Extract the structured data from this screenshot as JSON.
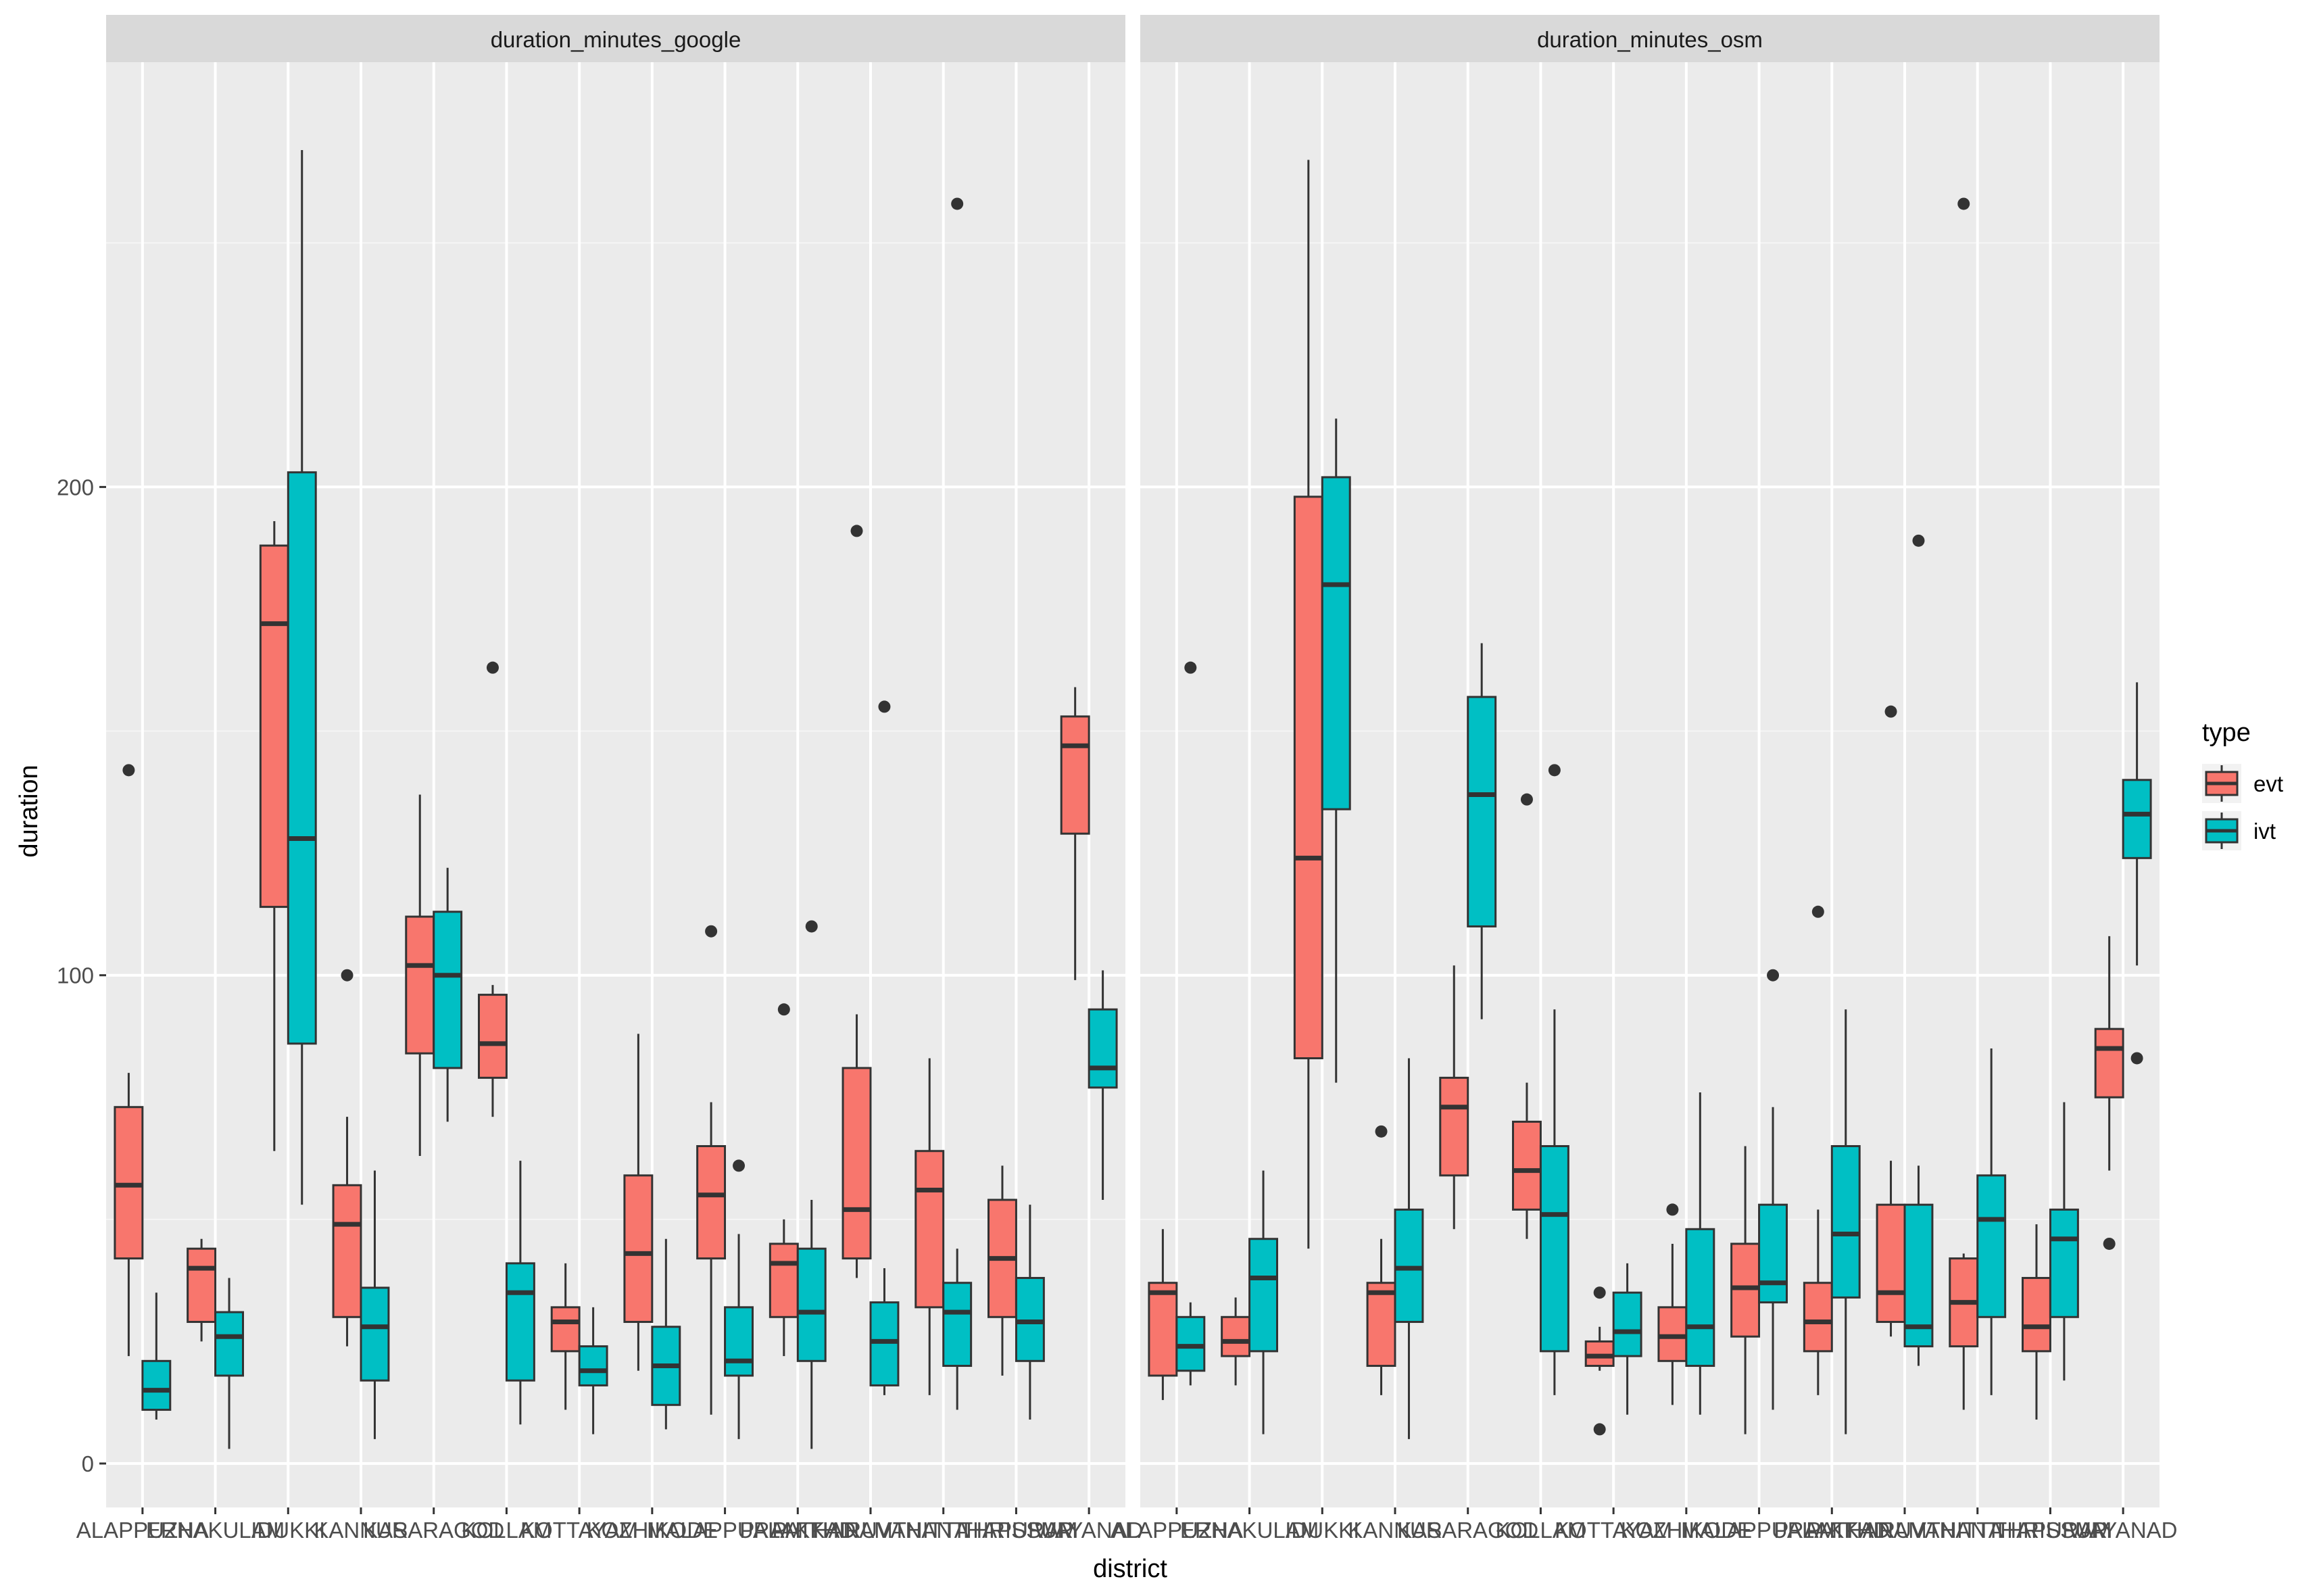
{
  "colors": {
    "panel_bg": "#EBEBEB",
    "grid_major": "#FFFFFF",
    "strip_bg": "#D9D9D9",
    "text_dark": "#1A1A1A",
    "text_axis": "#4D4D4D",
    "box_line": "#333333",
    "evt_fill": "#F8766D",
    "ivt_fill": "#00BFC4"
  },
  "chart_data": {
    "type": "boxplot",
    "xlabel": "district",
    "ylabel": "duration",
    "ylim": [
      -9,
      287
    ],
    "yticks": [
      0,
      100,
      200
    ],
    "grid": true,
    "facets": [
      "duration_minutes_google",
      "duration_minutes_osm"
    ],
    "categories": [
      "ALAPPUZHA",
      "ERNAKULAM",
      "IDUKKI",
      "KANNUR",
      "KASARAGOD",
      "KOLLAM",
      "KOTTAYAM",
      "KOZHIKODE",
      "MALAPPURAM",
      "PALAKKAD",
      "PATHANAMTHITTA",
      "THIRUVANANTHAPURAM",
      "THRISSUR",
      "WAYANAD"
    ],
    "legend": {
      "title": "type",
      "position": "right",
      "entries": [
        {
          "name": "evt",
          "color": "#F8766D"
        },
        {
          "name": "ivt",
          "color": "#00BFC4"
        }
      ]
    },
    "panels": [
      {
        "title": "duration_minutes_google",
        "series": [
          {
            "name": "evt",
            "boxes": [
              {
                "category": "ALAPPUZHA",
                "min": 22,
                "q1": 42,
                "median": 57,
                "q3": 73,
                "max": 80,
                "outliers": [
                  142
                ]
              },
              {
                "category": "IDUKKI",
                "min": 25,
                "q1": 29,
                "median": 40,
                "q3": 44,
                "max": 46,
                "outliers": []
              },
              {
                "category": "KANNUR",
                "min": 64,
                "q1": 114,
                "median": 172,
                "q3": 188,
                "max": 193,
                "outliers": []
              },
              {
                "category": "KOLLAM",
                "min": 24,
                "q1": 30,
                "median": 49,
                "q3": 57,
                "max": 71,
                "outliers": [
                  100
                ]
              },
              {
                "category": "KOTTAYAM",
                "min": 63,
                "q1": 84,
                "median": 102,
                "q3": 112,
                "max": 137,
                "outliers": []
              },
              {
                "category": "KOZHIKODE",
                "min": 71,
                "q1": 79,
                "median": 86,
                "q3": 96,
                "max": 98,
                "outliers": [
                  163
                ]
              },
              {
                "category": "MALAPPURAM",
                "min": 11,
                "q1": 23,
                "median": 29,
                "q3": 32,
                "max": 41,
                "outliers": []
              },
              {
                "category": "PALAKKAD",
                "min": 19,
                "q1": 29,
                "median": 43,
                "q3": 59,
                "max": 88,
                "outliers": []
              },
              {
                "category": "PATHANAMTHITTA",
                "min": 10,
                "q1": 42,
                "median": 55,
                "q3": 65,
                "max": 74,
                "outliers": [
                  109
                ]
              },
              {
                "category": "THIRUVANANTHAPURAM",
                "min": 22,
                "q1": 30,
                "median": 41,
                "q3": 45,
                "max": 50,
                "outliers": [
                  93
                ]
              },
              {
                "category": "THRISSUR",
                "min": 38,
                "q1": 42,
                "median": 52,
                "q3": 81,
                "max": 92,
                "outliers": [
                  191
                ]
              },
              {
                "category": "WAYANAD",
                "min": 14,
                "q1": 32,
                "median": 56,
                "q3": 64,
                "max": 83,
                "outliers": []
              },
              {
                "category": "WAYANAD",
                "min": 18,
                "q1": 30,
                "median": 42,
                "q3": 54,
                "max": 61,
                "outliers": []
              },
              {
                "category": "WAYANAD",
                "min": 99,
                "q1": 129,
                "median": 147,
                "q3": 153,
                "max": 159,
                "outliers": []
              }
            ]
          },
          {
            "name": "ivt",
            "boxes": [
              {
                "category": "ALAPPUZHA",
                "min": 9,
                "q1": 11,
                "median": 15,
                "q3": 21,
                "max": 35,
                "outliers": []
              },
              {
                "category": "IDUKKI",
                "min": 3,
                "q1": 18,
                "median": 26,
                "q3": 31,
                "max": 38,
                "outliers": []
              },
              {
                "category": "KANNUR",
                "min": 53,
                "q1": 86,
                "median": 128,
                "q3": 203,
                "max": 269,
                "outliers": []
              },
              {
                "category": "KOLLAM",
                "min": 5,
                "q1": 17,
                "median": 28,
                "q3": 36,
                "max": 60,
                "outliers": []
              },
              {
                "category": "KOTTAYAM",
                "min": 70,
                "q1": 81,
                "median": 100,
                "q3": 113,
                "max": 122,
                "outliers": []
              },
              {
                "category": "KOZHIKODE",
                "min": 8,
                "q1": 17,
                "median": 35,
                "q3": 41,
                "max": 62,
                "outliers": []
              },
              {
                "category": "MALAPPURAM",
                "min": 6,
                "q1": 16,
                "median": 19,
                "q3": 24,
                "max": 32,
                "outliers": []
              },
              {
                "category": "PALAKKAD",
                "min": 7,
                "q1": 12,
                "median": 20,
                "q3": 28,
                "max": 46,
                "outliers": []
              },
              {
                "category": "PATHANAMTHITTA",
                "min": 5,
                "q1": 18,
                "median": 21,
                "q3": 32,
                "max": 47,
                "outliers": [
                  61
                ]
              },
              {
                "category": "THIRUVANANTHAPURAM",
                "min": 3,
                "q1": 21,
                "median": 31,
                "q3": 44,
                "max": 54,
                "outliers": [
                  110
                ]
              },
              {
                "category": "THRISSUR",
                "min": 14,
                "q1": 16,
                "median": 25,
                "q3": 33,
                "max": 40,
                "outliers": [
                  155
                ]
              },
              {
                "category": "WAYANAD",
                "min": 11,
                "q1": 20,
                "median": 31,
                "q3": 37,
                "max": 44,
                "outliers": [
                  258
                ]
              },
              {
                "category": "WAYANAD",
                "min": 9,
                "q1": 21,
                "median": 29,
                "q3": 38,
                "max": 53,
                "outliers": []
              },
              {
                "category": "WAYANAD",
                "min": 54,
                "q1": 77,
                "median": 81,
                "q3": 93,
                "max": 101,
                "outliers": []
              }
            ]
          }
        ]
      },
      {
        "title": "duration_minutes_osm",
        "series": [
          {
            "name": "evt",
            "boxes": [
              {
                "category": "ALAPPUZHA",
                "min": 13,
                "q1": 18,
                "median": 35,
                "q3": 37,
                "max": 48,
                "outliers": []
              },
              {
                "category": "IDUKKI",
                "min": 16,
                "q1": 22,
                "median": 25,
                "q3": 30,
                "max": 34,
                "outliers": []
              },
              {
                "category": "KANNUR",
                "min": 44,
                "q1": 83,
                "median": 124,
                "q3": 198,
                "max": 267,
                "outliers": []
              },
              {
                "category": "KOLLAM",
                "min": 14,
                "q1": 20,
                "median": 35,
                "q3": 37,
                "max": 46,
                "outliers": [
                  68
                ]
              },
              {
                "category": "KOTTAYAM",
                "min": 48,
                "q1": 59,
                "median": 73,
                "q3": 79,
                "max": 102,
                "outliers": []
              },
              {
                "category": "KOZHIKODE",
                "min": 46,
                "q1": 52,
                "median": 60,
                "q3": 70,
                "max": 78,
                "outliers": [
                  136
                ]
              },
              {
                "category": "MALAPPURAM",
                "min": 19,
                "q1": 20,
                "median": 22,
                "q3": 25,
                "max": 28,
                "outliers": [
                  7,
                  35
                ]
              },
              {
                "category": "PALAKKAD",
                "min": 12,
                "q1": 21,
                "median": 26,
                "q3": 32,
                "max": 45,
                "outliers": [
                  52
                ]
              },
              {
                "category": "PATHANAMTHITTA",
                "min": 6,
                "q1": 26,
                "median": 36,
                "q3": 45,
                "max": 65,
                "outliers": []
              },
              {
                "category": "THIRUVANANTHAPURAM",
                "min": 14,
                "q1": 23,
                "median": 29,
                "q3": 37,
                "max": 52,
                "outliers": [
                  113
                ]
              },
              {
                "category": "THRISSUR",
                "min": 26,
                "q1": 29,
                "median": 35,
                "q3": 53,
                "max": 62,
                "outliers": [
                  154
                ]
              },
              {
                "category": "WAYANAD",
                "min": 11,
                "q1": 24,
                "median": 33,
                "q3": 42,
                "max": 43,
                "outliers": [
                  258
                ]
              },
              {
                "category": "WAYANAD",
                "min": 9,
                "q1": 23,
                "median": 28,
                "q3": 38,
                "max": 49,
                "outliers": []
              },
              {
                "category": "WAYANAD",
                "min": 60,
                "q1": 75,
                "median": 85,
                "q3": 89,
                "max": 108,
                "outliers": [
                  45
                ]
              }
            ]
          },
          {
            "name": "ivt",
            "boxes": [
              {
                "category": "ALAPPUZHA",
                "min": 16,
                "q1": 19,
                "median": 24,
                "q3": 30,
                "max": 33,
                "outliers": [
                  163
                ]
              },
              {
                "category": "IDUKKI",
                "min": 6,
                "q1": 23,
                "median": 38,
                "q3": 46,
                "max": 60,
                "outliers": []
              },
              {
                "category": "KANNUR",
                "min": 78,
                "q1": 134,
                "median": 180,
                "q3": 202,
                "max": 214,
                "outliers": []
              },
              {
                "category": "KOLLAM",
                "min": 5,
                "q1": 29,
                "median": 40,
                "q3": 52,
                "max": 83,
                "outliers": []
              },
              {
                "category": "KOTTAYAM",
                "min": 91,
                "q1": 110,
                "median": 137,
                "q3": 157,
                "max": 168,
                "outliers": []
              },
              {
                "category": "KOZHIKODE",
                "min": 14,
                "q1": 23,
                "median": 51,
                "q3": 65,
                "max": 93,
                "outliers": [
                  142
                ]
              },
              {
                "category": "MALAPPURAM",
                "min": 10,
                "q1": 22,
                "median": 27,
                "q3": 35,
                "max": 41,
                "outliers": []
              },
              {
                "category": "PALAKKAD",
                "min": 10,
                "q1": 20,
                "median": 28,
                "q3": 48,
                "max": 76,
                "outliers": []
              },
              {
                "category": "PATHANAMTHITTA",
                "min": 11,
                "q1": 33,
                "median": 37,
                "q3": 53,
                "max": 73,
                "outliers": [
                  100
                ]
              },
              {
                "category": "THIRUVANANTHAPURAM",
                "min": 6,
                "q1": 34,
                "median": 47,
                "q3": 65,
                "max": 93,
                "outliers": []
              },
              {
                "category": "THRISSUR",
                "min": 20,
                "q1": 24,
                "median": 28,
                "q3": 53,
                "max": 61,
                "outliers": [
                  189
                ]
              },
              {
                "category": "WAYANAD",
                "min": 14,
                "q1": 30,
                "median": 50,
                "q3": 59,
                "max": 85,
                "outliers": []
              },
              {
                "category": "WAYANAD",
                "min": 17,
                "q1": 30,
                "median": 46,
                "q3": 52,
                "max": 74,
                "outliers": []
              },
              {
                "category": "WAYANAD",
                "min": 102,
                "q1": 124,
                "median": 133,
                "q3": 140,
                "max": 160,
                "outliers": [
                  83
                ]
              }
            ]
          }
        ]
      }
    ]
  }
}
